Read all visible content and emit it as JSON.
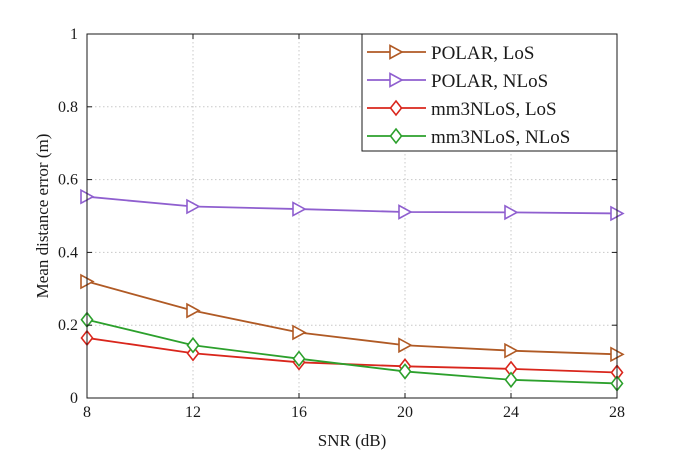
{
  "chart_data": {
    "type": "line",
    "title": "",
    "xlabel": "SNR (dB)",
    "ylabel": "Mean distance error (m)",
    "xlim": [
      8,
      28
    ],
    "ylim": [
      0,
      1
    ],
    "xticks": [
      8,
      12,
      16,
      20,
      24,
      28
    ],
    "yticks": [
      0,
      0.2,
      0.4,
      0.6,
      0.8,
      1
    ],
    "ytick_labels": [
      "0",
      "0.2",
      "0.4",
      "0.6",
      "0.8",
      "1"
    ],
    "grid": true,
    "legend_position": "top-right",
    "x": [
      8,
      12,
      16,
      20,
      24,
      28
    ],
    "series": [
      {
        "name": "POLAR, LoS",
        "color": "#b05a25",
        "marker": "triangle-right",
        "values": [
          0.32,
          0.24,
          0.18,
          0.145,
          0.13,
          0.12
        ]
      },
      {
        "name": "POLAR, NLoS",
        "color": "#8f5fcf",
        "marker": "triangle-right",
        "values": [
          0.553,
          0.526,
          0.519,
          0.511,
          0.51,
          0.507
        ]
      },
      {
        "name": "mm3NLoS, LoS",
        "color": "#d9261c",
        "marker": "diamond",
        "values": [
          0.165,
          0.123,
          0.098,
          0.087,
          0.08,
          0.07
        ]
      },
      {
        "name": "mm3NLoS, NLoS",
        "color": "#2ca02c",
        "marker": "diamond",
        "values": [
          0.215,
          0.145,
          0.108,
          0.073,
          0.05,
          0.04
        ]
      }
    ]
  }
}
